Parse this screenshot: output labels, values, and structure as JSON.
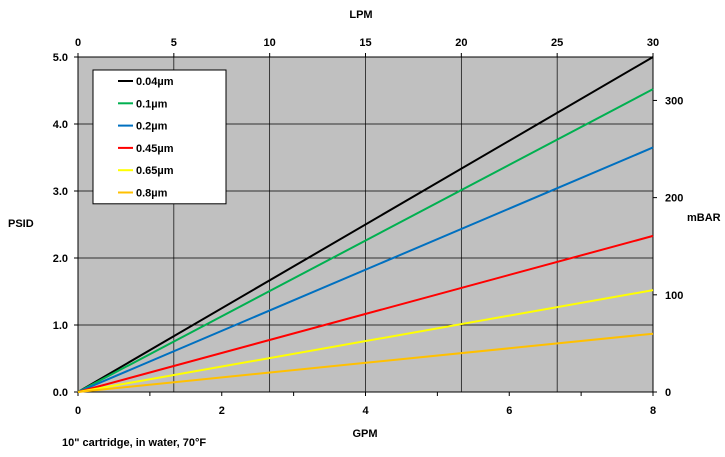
{
  "chart_data": {
    "type": "line",
    "bottom_axis": {
      "label": "GPM",
      "range": [
        0,
        8
      ],
      "ticks": [
        "0",
        "2",
        "4",
        "6",
        "8"
      ],
      "minor_step": 1
    },
    "top_axis": {
      "label": "LPM",
      "range": [
        0,
        30
      ],
      "ticks": [
        "0",
        "5",
        "10",
        "15",
        "20",
        "25",
        "30"
      ]
    },
    "left_axis": {
      "label": "PSID",
      "range": [
        0,
        5
      ],
      "ticks": [
        "0.0",
        "1.0",
        "2.0",
        "3.0",
        "4.0",
        "5.0"
      ]
    },
    "right_axis": {
      "label": "mBAR",
      "range": [
        0,
        344.7
      ],
      "ticks": [
        "0",
        "100",
        "200",
        "300"
      ]
    },
    "grid": true,
    "plot_background": "#c0c0c0",
    "legend_position": "top-left",
    "note": "10\" cartridge, in water, 70°F",
    "series": [
      {
        "name": "0.04µm",
        "color": "#000000",
        "x": [
          0,
          8
        ],
        "y": [
          0,
          5.0
        ]
      },
      {
        "name": "0.1µm",
        "color": "#00b050",
        "x": [
          0,
          8
        ],
        "y": [
          0,
          4.52
        ]
      },
      {
        "name": "0.2µm",
        "color": "#0070c0",
        "x": [
          0,
          8
        ],
        "y": [
          0,
          3.65
        ]
      },
      {
        "name": "0.45µm",
        "color": "#ff0000",
        "x": [
          0,
          8
        ],
        "y": [
          0,
          2.33
        ]
      },
      {
        "name": "0.65µm",
        "color": "#ffff00",
        "x": [
          0,
          8
        ],
        "y": [
          0,
          1.52
        ]
      },
      {
        "name": "0.8µm",
        "color": "#ffc000",
        "x": [
          0,
          8
        ],
        "y": [
          0,
          0.87
        ]
      }
    ]
  }
}
